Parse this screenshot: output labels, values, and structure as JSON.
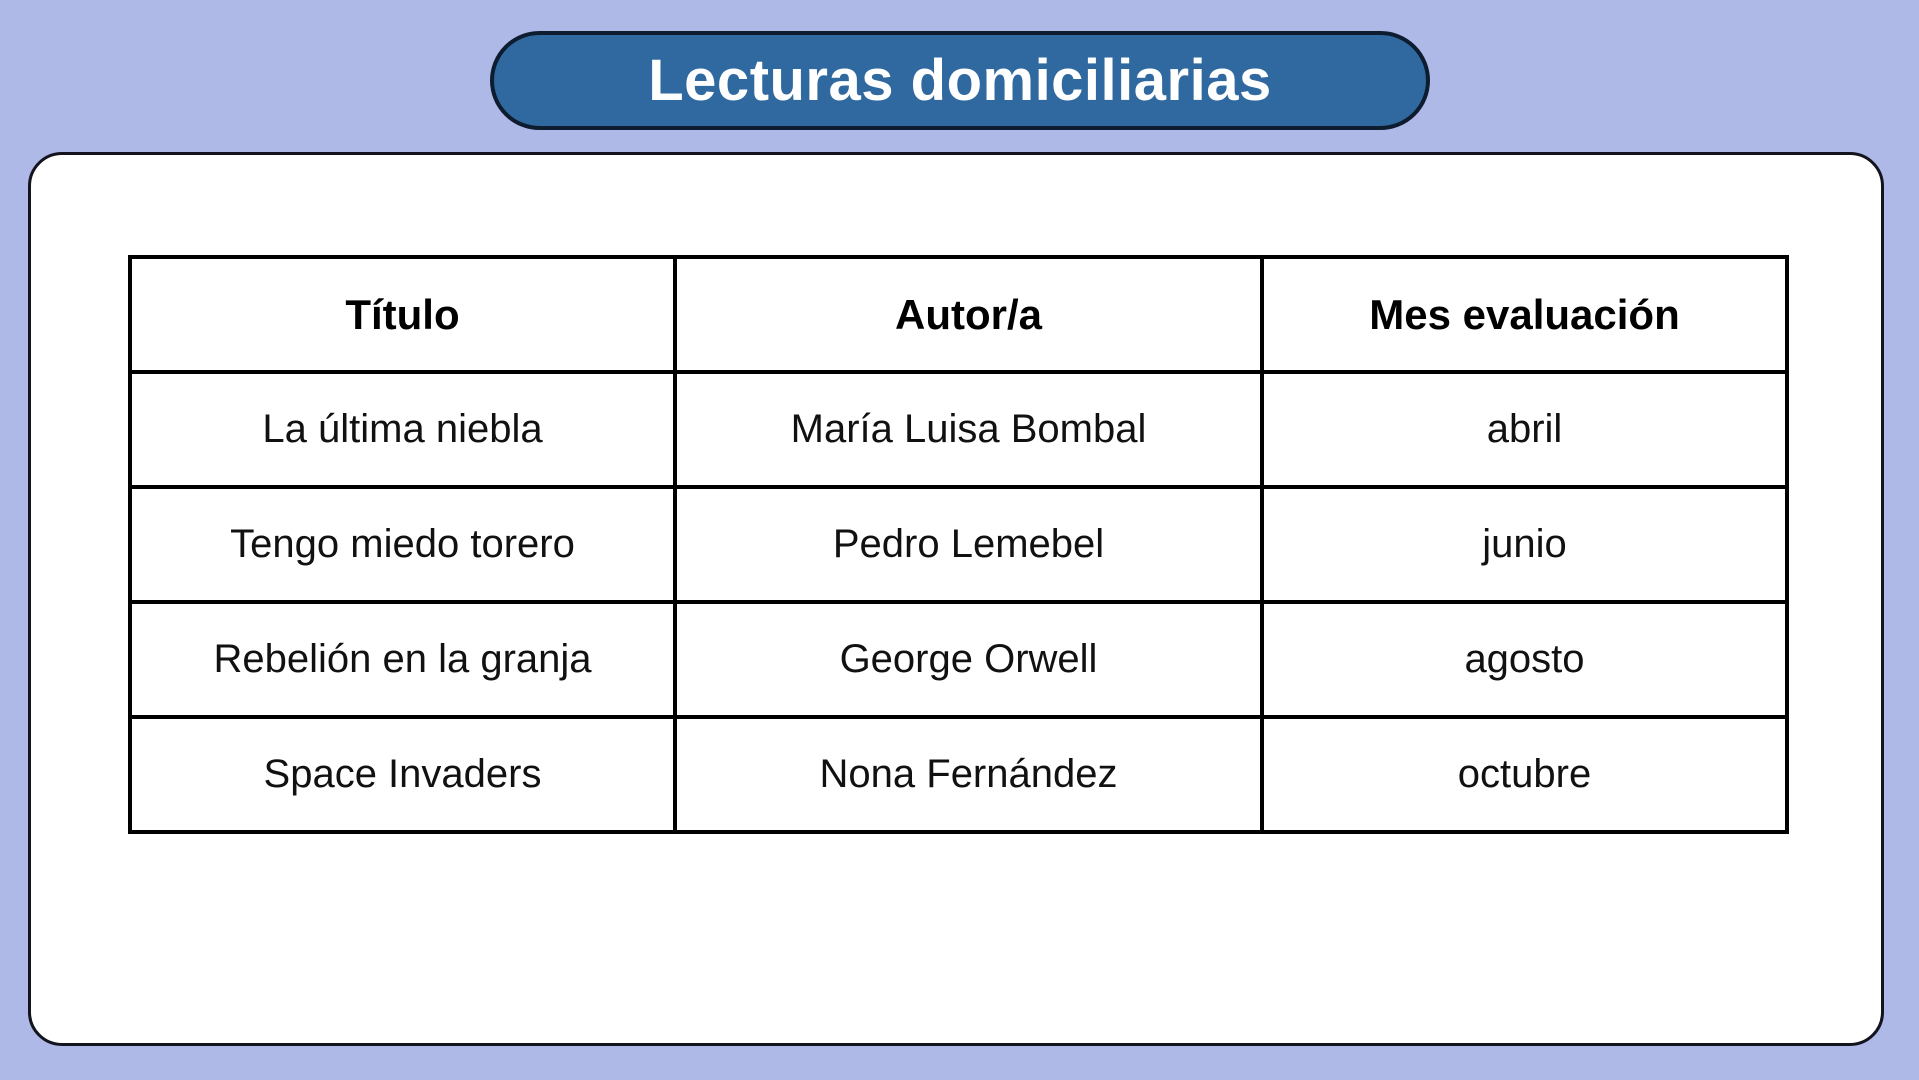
{
  "page": {
    "background_color": "#aeb9e8"
  },
  "title_badge": {
    "label": "Lecturas domiciliarias",
    "fill_color": "#2f699f",
    "border_color": "#0e1c30",
    "text_color": "#ffffff"
  },
  "table": {
    "headers": [
      "Título",
      "Autor/a",
      "Mes evaluación"
    ],
    "rows": [
      [
        "La última niebla",
        "María Luisa Bombal",
        "abril"
      ],
      [
        "Tengo miedo torero",
        "Pedro Lemebel",
        "junio"
      ],
      [
        "Rebelión en la granja",
        "George Orwell",
        "agosto"
      ],
      [
        "Space Invaders",
        "Nona Fernández",
        "octubre"
      ]
    ]
  }
}
